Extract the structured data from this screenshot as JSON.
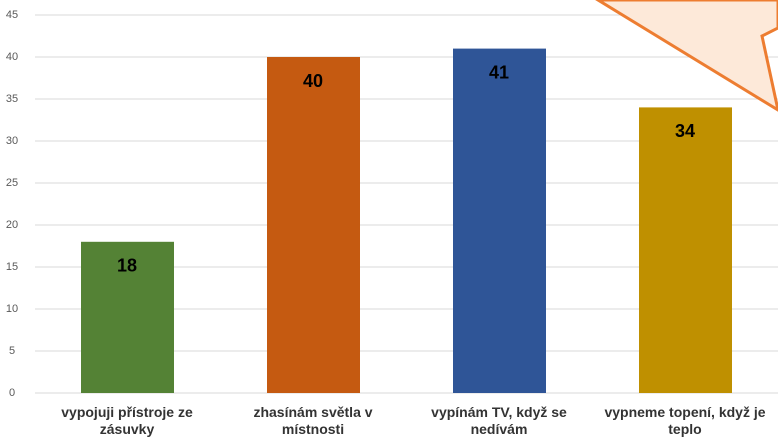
{
  "chart_data": {
    "type": "bar",
    "categories": [
      "vypojuji přístroje ze zásuvky",
      "zhasínám světla v místnosti",
      "vypínám TV, když se nedívám",
      "vypneme topení, když je teplo"
    ],
    "values": [
      18,
      40,
      41,
      34
    ],
    "colors": [
      "#548235",
      "#c55a11",
      "#2f5597",
      "#bf9000"
    ],
    "ylim": [
      0,
      45
    ],
    "yticks": [
      0,
      5,
      10,
      15,
      20,
      25,
      30,
      35,
      40,
      45
    ],
    "grid": true
  }
}
